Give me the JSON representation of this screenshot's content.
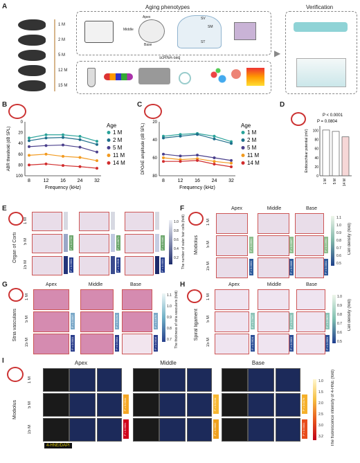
{
  "panels": {
    "A": {
      "label": "A",
      "ages": [
        "1 M",
        "2 M",
        "5 M",
        "12 M",
        "15 M"
      ],
      "aging_title": "Aging phenotypes",
      "verification_title": "Verification",
      "cochlea_labels": [
        "Apex",
        "Middle",
        "Base"
      ],
      "section_labels": [
        "SV",
        "SM",
        "ST"
      ],
      "scrna_label": "scRNA-seq"
    },
    "B": {
      "label": "B"
    },
    "C": {
      "label": "C"
    },
    "D": {
      "label": "D"
    },
    "E": {
      "label": "E",
      "row_title": "Organ of Corti",
      "cols": [
        "",
        "",
        ""
      ],
      "rows": [
        "1 M",
        "5 M",
        "15 M"
      ],
      "pvals": [
        "P = 0.1720",
        "P = 0.8871",
        "P = 0.9082",
        "P < 0.0001",
        "P = 0.0528",
        "P < 0.0001"
      ],
      "bar_title": "The number of outer hair cells (fold)",
      "bar_ticks": [
        "1.0",
        "0.8",
        "0.6",
        "0.4",
        "0.2"
      ]
    },
    "F": {
      "label": "F",
      "row_title": "Modiolus",
      "cols": [
        "Apex",
        "Middle",
        "Base"
      ],
      "rows": [
        "1 M",
        "5 M",
        "15 M"
      ],
      "pvals": [
        "P = 0.0951",
        "P = 0.0067",
        "P = 0.1991",
        "P < 0.0001",
        "P = 0.0005",
        "P < 0.0001"
      ],
      "bar_title": "Cell density (fold)",
      "bar_ticks": [
        "1.1",
        "1.0",
        "0.9",
        "0.8",
        "0.7",
        "0.6",
        "0.5"
      ]
    },
    "G": {
      "label": "G",
      "row_title": "Stria vascularis",
      "cols": [
        "Apex",
        "Middle",
        "Base"
      ],
      "rows": [
        "1 M",
        "5 M",
        "15 M"
      ],
      "pvals": [
        "P = 0.0007",
        "P = 0.0124",
        "P = 0.1875",
        "P < 0.0001",
        "P < 0.0001",
        "P = 0.0014"
      ],
      "bar_title": "The thickness of stria vascularis (fold)",
      "bar_ticks": [
        "1.1",
        "1.0",
        "0.9",
        "0.8",
        "0.7"
      ]
    },
    "H": {
      "label": "H",
      "row_title": "Spiral ligament",
      "cols": [
        "Apex",
        "Middle",
        "Base"
      ],
      "rows": [
        "1 M",
        "5 M",
        "15 M"
      ],
      "pvals": [
        "P = 0.7967",
        "P = 0.0431",
        "P = 0.0821",
        "P = 0.3624",
        "P < 0.0001",
        "P < 0.0001"
      ],
      "bar_title": "Cell density (fold)",
      "bar_ticks": [
        "1.0",
        "0.9",
        "0.8",
        "0.7",
        "0.6",
        "0.5"
      ]
    },
    "I": {
      "label": "I",
      "row_title": "Modiolus",
      "cols": [
        "Apex",
        "Middle",
        "Base"
      ],
      "rows": [
        "1 M",
        "5 M",
        "15 M"
      ],
      "pvals": [
        "P = 0.0041",
        "P = 0.0134",
        "P = 0.0179",
        "P < 0.0001",
        "P = 0.0002",
        "P < 0.0001"
      ],
      "stain_legend": "4-HNE/DAPI",
      "bar_title": "The fluorescence intensity of 4-HNE (fold)",
      "bar_ticks": [
        "1.0",
        "1.5",
        "2.0",
        "2.5",
        "3.0",
        "3.2"
      ]
    }
  },
  "chart_data": [
    {
      "type": "line",
      "xlabel": "Frequency (kHz)",
      "ylabel": "ABR threshold (dB SPL)",
      "categories": [
        "8",
        "12",
        "16",
        "24",
        "32"
      ],
      "ylim": [
        100,
        0
      ],
      "y_ticks": [
        "0",
        "20",
        "40",
        "60",
        "80",
        "100"
      ],
      "legend_title": "Age",
      "series": [
        {
          "name": "1 M",
          "color": "#2aa39a",
          "values": [
            30,
            24,
            24,
            27,
            36
          ]
        },
        {
          "name": "2 M",
          "color": "#1f6f8b",
          "values": [
            35,
            30,
            29,
            33,
            42
          ]
        },
        {
          "name": "5 M",
          "color": "#4a3f8c",
          "values": [
            46,
            44,
            43,
            47,
            56
          ]
        },
        {
          "name": "11 M",
          "color": "#f29a1f",
          "values": [
            62,
            60,
            64,
            66,
            72
          ]
        },
        {
          "name": "14 M",
          "color": "#d12d2d",
          "values": [
            80,
            78,
            81,
            83,
            86
          ]
        }
      ]
    },
    {
      "type": "line",
      "xlabel": "Frequency (kHz)",
      "ylabel": "DPOAE amplitude (dB SPL)",
      "categories": [
        "8",
        "12",
        "16",
        "24",
        "32"
      ],
      "ylim": [
        80,
        20
      ],
      "y_ticks": [
        "20",
        "40",
        "60",
        "80"
      ],
      "legend_title": "Age",
      "series": [
        {
          "name": "1 M",
          "color": "#2aa39a",
          "values": [
            36,
            34,
            33,
            36,
            42
          ]
        },
        {
          "name": "2 M",
          "color": "#1f6f8b",
          "values": [
            38,
            36,
            34,
            39,
            44
          ]
        },
        {
          "name": "5 M",
          "color": "#4a3f8c",
          "values": [
            56,
            58,
            57,
            60,
            63
          ]
        },
        {
          "name": "11 M",
          "color": "#f29a1f",
          "values": [
            60,
            62,
            61,
            64,
            66
          ]
        },
        {
          "name": "14 M",
          "color": "#d12d2d",
          "values": [
            64,
            64,
            63,
            67,
            70
          ]
        }
      ]
    },
    {
      "type": "bar",
      "ylabel": "Endocochlear potential (mV)",
      "categories": [
        "1 M",
        "5 M",
        "14 M"
      ],
      "values": [
        101,
        98,
        86
      ],
      "ylim": [
        0,
        110
      ],
      "y_ticks": [
        "0",
        "20",
        "40",
        "60",
        "80",
        "100"
      ],
      "annotations": [
        "P < 0.0001",
        "P = 0.0804"
      ]
    }
  ]
}
